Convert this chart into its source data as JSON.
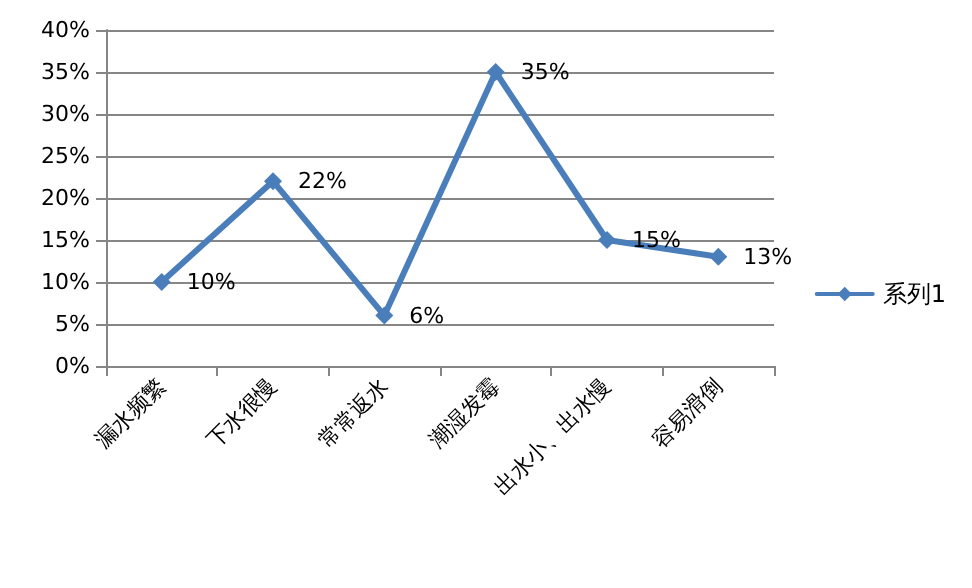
{
  "chart_data": {
    "type": "line",
    "categories": [
      "漏水频繁",
      "下水很慢",
      "常常返水",
      "潮湿发霉",
      "出水小、出水慢",
      "容易滑倒"
    ],
    "series": [
      {
        "name": "系列1",
        "color": "#4a7ebb",
        "values": [
          10,
          22,
          6,
          35,
          15,
          13
        ],
        "value_labels": [
          "10%",
          "22%",
          "6%",
          "35%",
          "15%",
          "13%"
        ]
      }
    ],
    "ylim": [
      0,
      40
    ],
    "yticks": [
      {
        "value": 0,
        "label": "0%"
      },
      {
        "value": 5,
        "label": "5%"
      },
      {
        "value": 10,
        "label": "10%"
      },
      {
        "value": 15,
        "label": "15%"
      },
      {
        "value": 20,
        "label": "20%"
      },
      {
        "value": 25,
        "label": "25%"
      },
      {
        "value": 30,
        "label": "30%"
      },
      {
        "value": 35,
        "label": "35%"
      },
      {
        "value": 40,
        "label": "40%"
      }
    ],
    "grid": "y",
    "legend": "right",
    "marker": "diamond",
    "line_style": "solid"
  }
}
